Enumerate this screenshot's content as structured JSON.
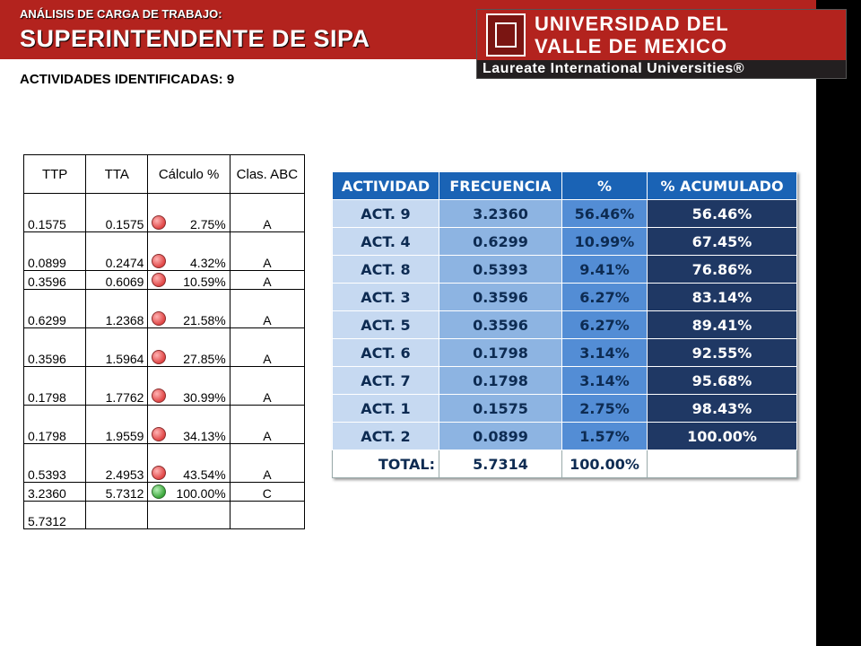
{
  "header": {
    "subtitle": "ANÁLISIS DE CARGA DE TRABAJO:",
    "title": "SUPERINTENDENTE DE SIPA"
  },
  "logo": {
    "line1": "UNIVERSIDAD DEL",
    "line2": "VALLE DE MEXICO",
    "tagline": "Laureate International Universities®"
  },
  "activities_label": "ACTIVIDADES IDENTIFICADAS: 9",
  "left_table": {
    "headers": [
      "TTP",
      "TTA",
      "Cálculo %",
      "Clas. ABC"
    ],
    "rows": [
      {
        "ttp": "0.1575",
        "tta": "0.1575",
        "calc": "2.75%",
        "clas": "A",
        "dot": "red"
      },
      {
        "ttp": "0.0899",
        "tta": "0.2474",
        "calc": "4.32%",
        "clas": "A",
        "dot": "red"
      },
      {
        "ttp": "0.3596",
        "tta": "0.6069",
        "calc": "10.59%",
        "clas": "A",
        "dot": "red"
      },
      {
        "ttp": "0.6299",
        "tta": "1.2368",
        "calc": "21.58%",
        "clas": "A",
        "dot": "red"
      },
      {
        "ttp": "0.3596",
        "tta": "1.5964",
        "calc": "27.85%",
        "clas": "A",
        "dot": "red"
      },
      {
        "ttp": "0.1798",
        "tta": "1.7762",
        "calc": "30.99%",
        "clas": "A",
        "dot": "red"
      },
      {
        "ttp": "0.1798",
        "tta": "1.9559",
        "calc": "34.13%",
        "clas": "A",
        "dot": "red"
      },
      {
        "ttp": "0.5393",
        "tta": "2.4953",
        "calc": "43.54%",
        "clas": "A",
        "dot": "red"
      },
      {
        "ttp": "3.2360",
        "tta": "5.7312",
        "calc": "100.00%",
        "clas": "C",
        "dot": "green"
      }
    ],
    "total": "5.7312"
  },
  "right_table": {
    "headers": [
      "ACTIVIDAD",
      "FRECUENCIA",
      "%",
      "% ACUMULADO"
    ],
    "rows": [
      {
        "act": "ACT. 9",
        "freq": "3.2360",
        "pct": "56.46%",
        "acum": "56.46%"
      },
      {
        "act": "ACT. 4",
        "freq": "0.6299",
        "pct": "10.99%",
        "acum": "67.45%"
      },
      {
        "act": "ACT. 8",
        "freq": "0.5393",
        "pct": "9.41%",
        "acum": "76.86%"
      },
      {
        "act": "ACT. 3",
        "freq": "0.3596",
        "pct": "6.27%",
        "acum": "83.14%"
      },
      {
        "act": "ACT. 5",
        "freq": "0.3596",
        "pct": "6.27%",
        "acum": "89.41%"
      },
      {
        "act": "ACT. 6",
        "freq": "0.1798",
        "pct": "3.14%",
        "acum": "92.55%"
      },
      {
        "act": "ACT. 7",
        "freq": "0.1798",
        "pct": "3.14%",
        "acum": "95.68%"
      },
      {
        "act": "ACT. 1",
        "freq": "0.1575",
        "pct": "2.75%",
        "acum": "98.43%"
      },
      {
        "act": "ACT. 2",
        "freq": "0.0899",
        "pct": "1.57%",
        "acum": "100.00%"
      }
    ],
    "total": {
      "label": "TOTAL:",
      "freq": "5.7314",
      "pct": "100.00%"
    }
  }
}
